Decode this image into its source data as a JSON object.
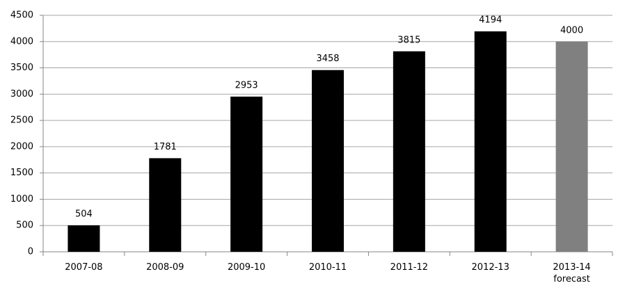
{
  "chart_data": {
    "type": "bar",
    "categories": [
      "2007-08",
      "2008-09",
      "2009-10",
      "2010-11",
      "2011-12",
      "2012-13",
      "2013-14 forecast"
    ],
    "values": [
      504,
      1781,
      2953,
      3458,
      3815,
      4194,
      4000
    ],
    "colors": [
      "#000000",
      "#000000",
      "#000000",
      "#000000",
      "#000000",
      "#000000",
      "#808080"
    ],
    "ylim": [
      0,
      4500
    ],
    "yticks": [
      0,
      500,
      1000,
      1500,
      2000,
      2500,
      3000,
      3500,
      4000,
      4500
    ],
    "grid": true
  }
}
